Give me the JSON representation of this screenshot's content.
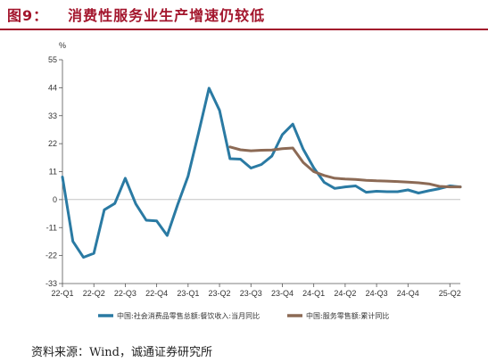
{
  "title": {
    "num": "图9：",
    "text": "消费性服务业生产增速仍较低"
  },
  "source": "资料来源：Wind，诚通证券研究所",
  "chart_data": {
    "type": "line",
    "ylabel": "%",
    "ylim": [
      -33,
      55
    ],
    "yticks": [
      55,
      44,
      33,
      22,
      11,
      0,
      -11,
      -22,
      -33
    ],
    "x_tick_labels": [
      "22-Q1",
      "22-Q2",
      "22-Q3",
      "22-Q4",
      "23-Q1",
      "23-Q2",
      "23-Q3",
      "23-Q4",
      "24-Q1",
      "24-Q2",
      "24-Q3",
      "24-Q4",
      "25-Q2"
    ],
    "x_tick_months": [
      0,
      3,
      6,
      9,
      12,
      15,
      18,
      21,
      24,
      27,
      30,
      33,
      37
    ],
    "xlim": [
      0,
      38
    ],
    "grid": false,
    "legend_position": "bottom",
    "series": [
      {
        "name": "中国:社会消费品零售总额:餐饮收入:当月同比",
        "color": "#2a7aa3",
        "x": [
          0,
          1,
          2,
          3,
          4,
          5,
          6,
          7,
          8,
          9,
          10,
          11,
          12,
          13,
          14,
          15,
          16,
          17,
          18,
          19,
          20,
          21,
          22,
          23,
          24,
          25,
          26,
          27,
          28,
          29,
          30,
          31,
          32,
          33,
          34,
          35,
          36,
          37,
          38
        ],
        "y": [
          8.9,
          -16.4,
          -22.7,
          -21.1,
          -4,
          -1.5,
          8.4,
          -1.7,
          -8.1,
          -8.4,
          -14.1,
          -2,
          9.2,
          26.3,
          43.8,
          35.1,
          16.1,
          15.9,
          12.4,
          13.8,
          17.1,
          25.6,
          29.7,
          19.8,
          12.5,
          6.8,
          4.4,
          5,
          5.4,
          2.9,
          3.3,
          3.1,
          3.1,
          3.8,
          2.6,
          3.5,
          4.3,
          5.4,
          5
        ]
      },
      {
        "name": "中国:服务零售额:累计同比",
        "color": "#8c6a55",
        "x": [
          16,
          17,
          18,
          19,
          20,
          21,
          22,
          23,
          24,
          25,
          26,
          27,
          28,
          29,
          30,
          31,
          32,
          33,
          34,
          35,
          36,
          37,
          38
        ],
        "y": [
          20.7,
          19.6,
          19.2,
          19.4,
          19.5,
          20,
          20.3,
          14.6,
          11,
          9.5,
          8.4,
          8.1,
          7.9,
          7.6,
          7.4,
          7.3,
          7.1,
          6.9,
          6.6,
          6.2,
          5.2,
          5,
          5
        ]
      }
    ]
  }
}
